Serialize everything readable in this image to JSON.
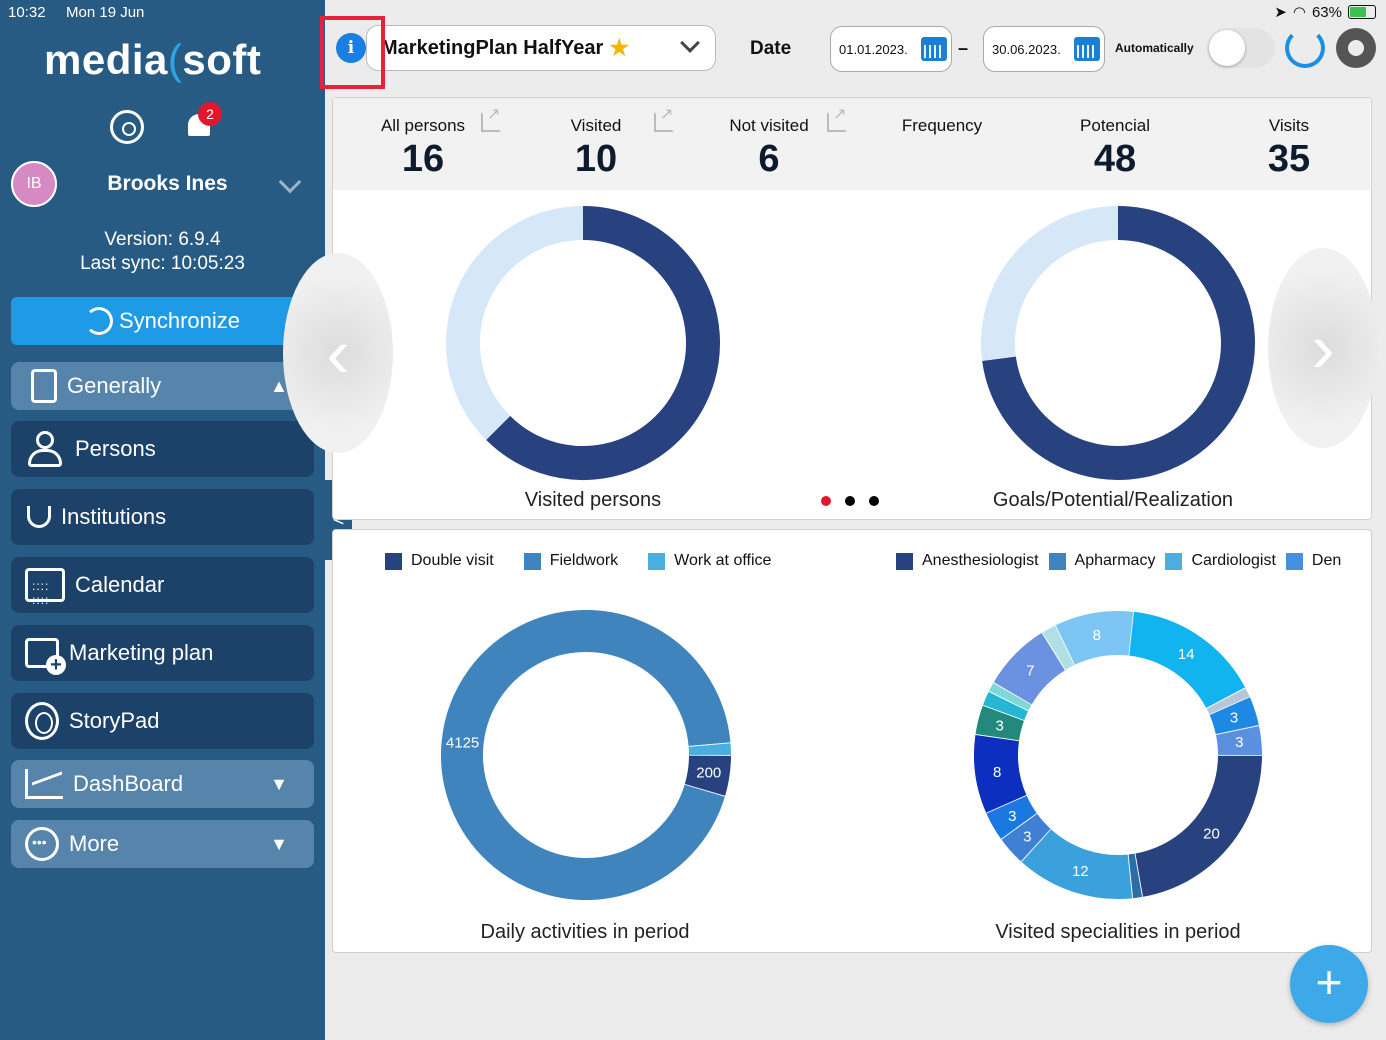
{
  "status_bar": {
    "time": "10:32",
    "date": "Mon 19 Jun",
    "battery": "63%"
  },
  "sidebar": {
    "logo_left": "media",
    "logo_right": "soft",
    "notification_count": "2",
    "user_initials": "IB",
    "user_name": "Brooks Ines",
    "version": "Version: 6.9.4",
    "last_sync": "Last sync: 10:05:23",
    "sync_label": "Synchronize",
    "items": [
      {
        "label": "Generally",
        "icon": "document-icon"
      },
      {
        "label": "Persons",
        "icon": "person-icon"
      },
      {
        "label": "Institutions",
        "icon": "stethoscope-icon"
      },
      {
        "label": "Calendar",
        "icon": "calendar-icon"
      },
      {
        "label": "Marketing plan",
        "icon": "calendar-plus-icon"
      },
      {
        "label": "StoryPad",
        "icon": "fingerprint-icon"
      },
      {
        "label": "DashBoard",
        "icon": "chart-icon"
      },
      {
        "label": "More",
        "icon": "more-icon"
      }
    ],
    "collapse_label": "<"
  },
  "topbar": {
    "plan_name": "MarketingPlan HalfYear",
    "date_label": "Date",
    "date_from": "01.01.2023.",
    "date_to": "30.06.2023.",
    "date_dash": "–",
    "auto_label": "Automatically",
    "info_symbol": "i"
  },
  "stats": [
    {
      "label": "All persons",
      "value": "16"
    },
    {
      "label": "Visited",
      "value": "10"
    },
    {
      "label": "Not visited",
      "value": "6"
    },
    {
      "label": "Frequency",
      "value": ""
    },
    {
      "label": "Potencial",
      "value": "48"
    },
    {
      "label": "Visits",
      "value": "35"
    }
  ],
  "chart_data": [
    {
      "type": "pie",
      "title": "Visited persons",
      "slices": [
        {
          "value": 10
        },
        {
          "value": 6
        }
      ],
      "colors": [
        "#27427f",
        "#d6e8f8"
      ]
    },
    {
      "type": "pie",
      "title": "Goals/Potential/Realization",
      "slices": [
        {
          "value": 35
        },
        {
          "value": 13
        }
      ],
      "colors": [
        "#27427f",
        "#d6e8f8"
      ]
    },
    {
      "type": "pie",
      "title": "Daily activities in period",
      "legend": [
        "Double visit",
        "Fieldwork",
        "Work at office"
      ],
      "legend_colors": [
        "#27427f",
        "#3f84bd",
        "#4aaee0"
      ],
      "slices": [
        {
          "name": "Fieldwork",
          "value": 4125,
          "label": "4125",
          "color": "#3f84bd"
        },
        {
          "name": "Double visit",
          "value": 200,
          "label": "200",
          "color": "#27427f"
        },
        {
          "name": "Work at office",
          "value": 60,
          "label": "",
          "color": "#4aaee0"
        }
      ]
    },
    {
      "type": "pie",
      "title": "Visited specialities in period",
      "legend": [
        "Anesthesiologist",
        "Apharmacy",
        "Cardiologist",
        "Den"
      ],
      "legend_colors": [
        "#27427f",
        "#3f84bd",
        "#4aaee0",
        "#4591e0"
      ],
      "slices": [
        {
          "value": 14,
          "label": "14",
          "color": "#12b4f0"
        },
        {
          "value": 1,
          "label": "",
          "color": "#b8c8d8"
        },
        {
          "value": 3,
          "label": "3",
          "color": "#1e88e5"
        },
        {
          "value": 3,
          "label": "3",
          "color": "#5b8fe0"
        },
        {
          "value": 20,
          "label": "20",
          "color": "#27427f"
        },
        {
          "value": 1,
          "label": "",
          "color": "#2e6ca8"
        },
        {
          "value": 12,
          "label": "12",
          "color": "#3aa1dd"
        },
        {
          "value": 3,
          "label": "3",
          "color": "#3f7fd4"
        },
        {
          "value": 3,
          "label": "3",
          "color": "#1a78e0"
        },
        {
          "value": 8,
          "label": "8",
          "color": "#0d2fc0"
        },
        {
          "value": 3,
          "label": "3",
          "color": "#24897d"
        },
        {
          "value": 1.5,
          "label": "",
          "color": "#26b6d4"
        },
        {
          "value": 1,
          "label": "",
          "color": "#7dd8d8"
        },
        {
          "value": 7,
          "label": "7",
          "color": "#6a92e0"
        },
        {
          "value": 1.5,
          "label": "",
          "color": "#aee0e6"
        },
        {
          "value": 8,
          "label": "8",
          "color": "#7cc5f4"
        }
      ]
    }
  ],
  "carousel_dots": 3,
  "fab_label": "+"
}
